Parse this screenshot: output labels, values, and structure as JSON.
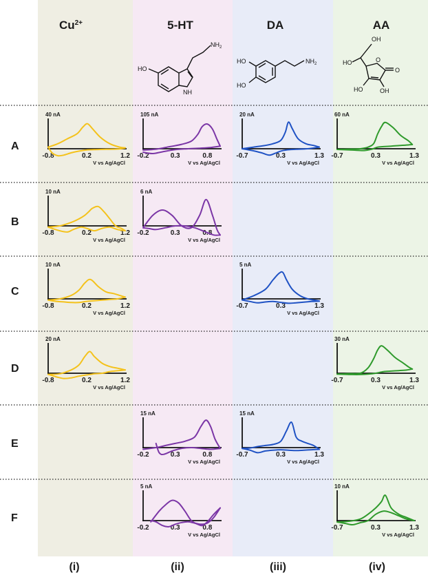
{
  "columns": [
    {
      "id": "i",
      "header": "Cu",
      "sup": "2+",
      "footer": "(i)",
      "bg": "#efeee3",
      "color": "#f4c21b"
    },
    {
      "id": "ii",
      "header": "5-HT",
      "sup": "",
      "footer": "(ii)",
      "bg": "#f6e9f4",
      "color": "#7b36a6"
    },
    {
      "id": "iii",
      "header": "DA",
      "sup": "",
      "footer": "(iii)",
      "bg": "#e8ecf8",
      "color": "#1f52c4"
    },
    {
      "id": "iv",
      "header": "AA",
      "sup": "",
      "footer": "(iv)",
      "bg": "#ecf4e6",
      "color": "#2f9a2c"
    }
  ],
  "rows": [
    "A",
    "B",
    "C",
    "D",
    "E",
    "F"
  ],
  "structures": {
    "serotonin": [
      "HO",
      "NH",
      "NH",
      "2"
    ],
    "dopamine": [
      "HO",
      "HO",
      "NH",
      "2"
    ],
    "ascorbic_acid": [
      "OH",
      "HO",
      "O",
      "O",
      "HO",
      "OH"
    ]
  },
  "chart_data": [
    {
      "type": "line",
      "row": "A",
      "column": "i",
      "ylabel": "40 nA",
      "xticks": [
        "-0.8",
        "0.2",
        "1.2"
      ],
      "xlabel": "V vs Ag/AgCl",
      "xlim": [
        -0.8,
        1.2
      ],
      "ylim": [
        -38,
        38
      ],
      "series": [
        {
          "x": [
            -0.8,
            -0.55,
            -0.3,
            -0.05,
            0.1,
            0.22,
            0.35,
            0.55,
            0.8,
            1.05,
            1.2
          ],
          "y": [
            2,
            6,
            12,
            18,
            26,
            30,
            24,
            14,
            6,
            2,
            1
          ]
        },
        {
          "x": [
            1.2,
            1.0,
            0.7,
            0.4,
            0.2,
            0.0,
            -0.2,
            -0.4,
            -0.55,
            -0.7,
            -0.8
          ],
          "y": [
            1,
            -1,
            -2,
            -3,
            -4,
            -8,
            -14,
            -22,
            -24,
            -14,
            2
          ]
        }
      ]
    },
    {
      "type": "line",
      "row": "A",
      "column": "ii",
      "ylabel": "105 nA",
      "xticks": [
        "-0.2",
        "0.3",
        "0.8"
      ],
      "xlabel": "V vs Ag/AgCl",
      "xlim": [
        -0.2,
        1.0
      ],
      "ylim": [
        -50,
        100
      ],
      "series": [
        {
          "x": [
            -0.2,
            0.0,
            0.2,
            0.4,
            0.55,
            0.65,
            0.72,
            0.8,
            0.88,
            0.95,
            1.0
          ],
          "y": [
            -6,
            -2,
            6,
            14,
            24,
            45,
            70,
            78,
            62,
            30,
            8
          ]
        },
        {
          "x": [
            1.0,
            0.85,
            0.7,
            0.5,
            0.3,
            0.1,
            -0.05,
            -0.2
          ],
          "y": [
            8,
            4,
            2,
            0,
            -4,
            -14,
            -22,
            -16
          ]
        }
      ]
    },
    {
      "type": "line",
      "row": "A",
      "column": "iii",
      "ylabel": "20 nA",
      "xticks": [
        "-0.7",
        "0.3",
        "1.3"
      ],
      "xlabel": "V vs Ag/AgCl",
      "xlim": [
        -0.7,
        1.3
      ],
      "ylim": [
        -19,
        19
      ],
      "series": [
        {
          "x": [
            -0.7,
            -0.4,
            -0.1,
            0.1,
            0.3,
            0.42,
            0.5,
            0.6,
            0.75,
            0.95,
            1.15,
            1.3
          ],
          "y": [
            0,
            1,
            2,
            3,
            5,
            10,
            16,
            12,
            6,
            3,
            2,
            1
          ]
        },
        {
          "x": [
            1.3,
            1.0,
            0.7,
            0.45,
            0.3,
            0.15,
            0.0,
            -0.2,
            -0.45,
            -0.7
          ],
          "y": [
            1,
            0,
            -1,
            -2,
            -4,
            -8,
            -11,
            -7,
            -3,
            0
          ]
        }
      ]
    },
    {
      "type": "line",
      "row": "A",
      "column": "iv",
      "ylabel": "60 nA",
      "xticks": [
        "-0.7",
        "0.3",
        "1.3"
      ],
      "xlabel": "V vs Ag/AgCl",
      "xlim": [
        -0.7,
        1.3
      ],
      "ylim": [
        -50,
        60
      ],
      "series": [
        {
          "x": [
            -0.7,
            -0.4,
            -0.1,
            0.1,
            0.25,
            0.35,
            0.45,
            0.55,
            0.75,
            0.95,
            1.15,
            1.25
          ],
          "y": [
            -3,
            -2,
            0,
            3,
            10,
            28,
            42,
            50,
            40,
            25,
            15,
            8
          ]
        },
        {
          "x": [
            1.25,
            1.1,
            0.9,
            0.7,
            0.5,
            0.35,
            0.2,
            0.0,
            -0.3,
            -0.7
          ],
          "y": [
            8,
            7,
            6,
            5,
            4,
            3,
            -2,
            -8,
            -6,
            -3
          ]
        }
      ]
    },
    {
      "type": "line",
      "row": "B",
      "column": "i",
      "ylabel": "10 nA",
      "xticks": [
        "-0.8",
        "0.2",
        "1.2"
      ],
      "xlabel": "V vs Ag/AgCl",
      "xlim": [
        -0.8,
        1.2
      ],
      "ylim": [
        -9,
        9
      ],
      "series": [
        {
          "x": [
            -0.8,
            -0.5,
            -0.2,
            0.0,
            0.15,
            0.25,
            0.35,
            0.5,
            0.65,
            0.8,
            0.95,
            1.1,
            1.2
          ],
          "y": [
            -1,
            0,
            1,
            2,
            3,
            4,
            5,
            5.5,
            4,
            2,
            0,
            -2,
            -4
          ]
        },
        {
          "x": [
            1.2,
            1.0,
            0.8,
            0.6,
            0.4,
            0.2,
            0.05,
            -0.15,
            -0.3,
            -0.5,
            -0.8
          ],
          "y": [
            -4,
            -3,
            -1,
            -2,
            -4,
            -2,
            -1,
            -3,
            -5,
            -4,
            -1
          ]
        }
      ]
    },
    {
      "type": "line",
      "row": "B",
      "column": "ii",
      "ylabel": "6 nA",
      "xticks": [
        "-0.2",
        "0.3",
        "0.8"
      ],
      "xlabel": "V vs Ag/AgCl",
      "xlim": [
        -0.2,
        1.0
      ],
      "ylim": [
        -6,
        6
      ],
      "series": [
        {
          "x": [
            -0.2,
            -0.05,
            0.1,
            0.25,
            0.4,
            0.55,
            0.68,
            0.78,
            0.88,
            0.95,
            1.0
          ],
          "y": [
            -1,
            2,
            3,
            2,
            0,
            -1,
            2,
            5,
            2,
            -2,
            -5
          ]
        },
        {
          "x": [
            1.0,
            0.9,
            0.75,
            0.6,
            0.45,
            0.3,
            0.15,
            0.0,
            -0.1,
            -0.2
          ],
          "y": [
            -5,
            -5,
            -3,
            -1,
            0,
            0,
            -1,
            -2,
            -1.5,
            -1
          ]
        }
      ]
    },
    {
      "type": "line",
      "row": "C",
      "column": "i",
      "ylabel": "10 nA",
      "xticks": [
        "-0.8",
        "0.2",
        "1.2"
      ],
      "xlabel": "V vs Ag/AgCl",
      "xlim": [
        -0.8,
        1.2
      ],
      "ylim": [
        -9,
        9
      ],
      "series": [
        {
          "x": [
            -0.8,
            -0.5,
            -0.2,
            0.0,
            0.15,
            0.3,
            0.5,
            0.7,
            0.9,
            1.05,
            1.2
          ],
          "y": [
            -1,
            0,
            1,
            2.5,
            4.5,
            5.5,
            3.5,
            2,
            1.5,
            1,
            0.5
          ]
        },
        {
          "x": [
            1.2,
            1.0,
            0.8,
            0.6,
            0.4,
            0.2,
            0.0,
            -0.2,
            -0.4,
            -0.6,
            -0.8
          ],
          "y": [
            0.5,
            0,
            -0.5,
            -1,
            -1.5,
            -2,
            -3,
            -3,
            -2.5,
            -2,
            -1
          ]
        }
      ]
    },
    {
      "type": "line",
      "row": "C",
      "column": "iii",
      "ylabel": "5 nA",
      "xticks": [
        "-0.7",
        "0.3",
        "1.3"
      ],
      "xlabel": "V vs Ag/AgCl",
      "xlim": [
        -0.7,
        1.3
      ],
      "ylim": [
        -5,
        5
      ],
      "series": [
        {
          "x": [
            -0.7,
            -0.4,
            -0.1,
            0.1,
            0.25,
            0.35,
            0.45,
            0.6,
            0.8,
            1.0,
            1.15,
            1.3
          ],
          "y": [
            -0.5,
            0.5,
            1.5,
            3,
            4,
            4.2,
            3,
            1.5,
            0.5,
            0,
            -0.5,
            -1
          ]
        },
        {
          "x": [
            1.3,
            1.1,
            0.9,
            0.7,
            0.5,
            0.3,
            0.1,
            -0.1,
            -0.3,
            -0.5,
            -0.7
          ],
          "y": [
            -1,
            -1.2,
            -1.5,
            -1.8,
            -2,
            -1.6,
            -1.2,
            -1.4,
            -1.8,
            -1.2,
            -0.5
          ]
        }
      ]
    },
    {
      "type": "line",
      "row": "D",
      "column": "i",
      "ylabel": "20 nA",
      "xticks": [
        "-0.8",
        "0.2",
        "1.2"
      ],
      "xlabel": "V vs Ag/AgCl",
      "xlim": [
        -0.8,
        1.2
      ],
      "ylim": [
        -19,
        19
      ],
      "series": [
        {
          "x": [
            -0.8,
            -0.5,
            -0.2,
            0.0,
            0.15,
            0.28,
            0.4,
            0.6,
            0.8,
            1.0,
            1.2
          ],
          "y": [
            -2,
            -1,
            2,
            5,
            10,
            13,
            10,
            6,
            4,
            3,
            2
          ]
        },
        {
          "x": [
            1.2,
            1.0,
            0.8,
            0.6,
            0.4,
            0.2,
            0.0,
            -0.2,
            -0.4,
            -0.6,
            -0.8
          ],
          "y": [
            2,
            1.5,
            1,
            0,
            -1,
            -3,
            -5,
            -8,
            -9,
            -6,
            -2
          ]
        }
      ]
    },
    {
      "type": "line",
      "row": "D",
      "column": "iv",
      "ylabel": "30 nA",
      "xticks": [
        "-0.7",
        "0.3",
        "1.3"
      ],
      "xlabel": "V vs Ag/AgCl",
      "xlim": [
        -0.7,
        1.3
      ],
      "ylim": [
        -25,
        30
      ],
      "series": [
        {
          "x": [
            -0.7,
            -0.4,
            -0.1,
            0.1,
            0.25,
            0.35,
            0.45,
            0.6,
            0.8,
            1.0,
            1.15,
            1.25
          ],
          "y": [
            -2,
            -1,
            0,
            5,
            14,
            22,
            26,
            22,
            15,
            10,
            6,
            4
          ]
        },
        {
          "x": [
            1.25,
            1.1,
            0.9,
            0.7,
            0.5,
            0.3,
            0.1,
            -0.1,
            -0.3,
            -0.5,
            -0.7
          ],
          "y": [
            4,
            3,
            2.5,
            2,
            1.5,
            0,
            -2,
            -3,
            -3,
            -2.5,
            -2
          ]
        }
      ]
    },
    {
      "type": "line",
      "row": "E",
      "column": "ii",
      "ylabel": "15 nA",
      "xticks": [
        "-0.2",
        "0.3",
        "0.8"
      ],
      "xlabel": "V vs Ag/AgCl",
      "xlim": [
        -0.2,
        1.0
      ],
      "ylim": [
        -13,
        15
      ],
      "series": [
        {
          "x": [
            -0.2,
            0.0,
            0.15,
            0.3,
            0.45,
            0.6,
            0.7,
            0.78,
            0.85,
            0.92,
            1.0
          ],
          "y": [
            -2,
            0,
            1,
            2,
            3,
            5,
            10,
            13,
            10,
            4,
            -1
          ]
        },
        {
          "x": [
            1.0,
            0.85,
            0.7,
            0.55,
            0.4,
            0.25,
            0.12,
            0.05,
            0.0
          ],
          "y": [
            -1,
            -2,
            -1,
            0,
            -1,
            -4,
            -8,
            -6,
            2
          ]
        }
      ]
    },
    {
      "type": "line",
      "row": "E",
      "column": "iii",
      "ylabel": "15 nA",
      "xticks": [
        "-0.7",
        "0.3",
        "1.3"
      ],
      "xlabel": "V vs Ag/AgCl",
      "xlim": [
        -0.7,
        1.3
      ],
      "ylim": [
        -13,
        15
      ],
      "series": [
        {
          "x": [
            -0.7,
            -0.5,
            -0.3,
            -0.1,
            0.1,
            0.3,
            0.45,
            0.58,
            0.7,
            0.85,
            1.0,
            1.15,
            1.3
          ],
          "y": [
            -1,
            -0.5,
            0.5,
            1,
            1.5,
            3,
            8,
            12,
            5,
            3,
            2,
            1,
            -2
          ]
        },
        {
          "x": [
            1.3,
            1.1,
            0.9,
            0.7,
            0.5,
            0.3,
            0.1,
            -0.1,
            -0.3,
            -0.5,
            -0.7
          ],
          "y": [
            -2,
            -2.5,
            -3,
            -3.5,
            -3,
            -2.5,
            -3,
            -4,
            -6,
            -3,
            -1
          ]
        }
      ]
    },
    {
      "type": "line",
      "row": "F",
      "column": "ii",
      "ylabel": "5 nA",
      "xticks": [
        "-0.2",
        "0.3",
        "0.8"
      ],
      "xlabel": "V vs Ag/AgCl",
      "xlim": [
        -0.2,
        1.0
      ],
      "ylim": [
        -4.5,
        5
      ],
      "series": [
        {
          "x": [
            -0.08,
            0.05,
            0.15,
            0.25,
            0.35,
            0.45,
            0.55,
            0.65,
            0.72,
            0.8,
            0.9,
            1.0
          ],
          "y": [
            -0.5,
            1.5,
            2.5,
            3.2,
            2.8,
            1.5,
            0,
            -1.5,
            -2,
            -0.5,
            1,
            2
          ]
        },
        {
          "x": [
            1.0,
            0.9,
            0.8,
            0.7,
            0.6,
            0.5,
            0.4,
            0.3,
            0.2,
            0.1,
            0.0,
            -0.08
          ],
          "y": [
            2,
            0.5,
            -1,
            -1.5,
            -1,
            -0.5,
            -0.8,
            -1.5,
            -2.5,
            -2,
            -0.5,
            0
          ]
        }
      ]
    },
    {
      "type": "line",
      "row": "F",
      "column": "iv",
      "ylabel": "10 nA",
      "xticks": [
        "-0.7",
        "0.3",
        "1.3"
      ],
      "xlabel": "V vs Ag/AgCl",
      "xlim": [
        -0.7,
        1.3
      ],
      "ylim": [
        -8,
        10
      ],
      "series": [
        {
          "x": [
            -0.7,
            -0.4,
            -0.1,
            0.1,
            0.3,
            0.45,
            0.55,
            0.7,
            0.9,
            1.1,
            1.3
          ],
          "y": [
            -1,
            -0.5,
            0.5,
            2,
            4,
            6,
            8,
            4,
            2,
            1,
            0
          ]
        },
        {
          "x": [
            1.3,
            1.1,
            0.9,
            0.7,
            0.5,
            0.3,
            0.1,
            -0.1,
            -0.3,
            -0.5,
            -0.7
          ],
          "y": [
            0,
            0.5,
            1.5,
            2.5,
            3,
            2,
            0,
            -1.5,
            -3,
            -2,
            -1
          ]
        }
      ]
    }
  ]
}
